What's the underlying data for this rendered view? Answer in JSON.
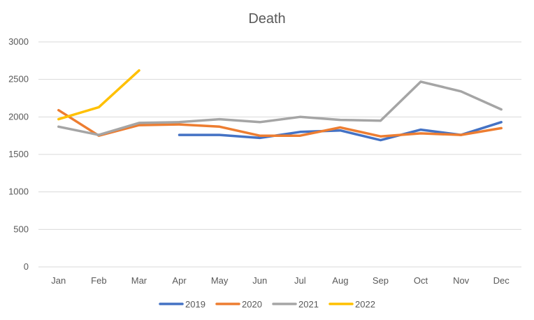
{
  "chart_data": {
    "type": "line",
    "title": "Death",
    "xlabel": "",
    "ylabel": "",
    "categories": [
      "Jan",
      "Feb",
      "Mar",
      "Apr",
      "May",
      "Jun",
      "Jul",
      "Aug",
      "Sep",
      "Oct",
      "Nov",
      "Dec"
    ],
    "ylim": [
      0,
      3000
    ],
    "yticks": [
      0,
      500,
      1000,
      1500,
      2000,
      2500,
      3000
    ],
    "grid": true,
    "legend_position": "bottom",
    "series": [
      {
        "name": "2019",
        "color": "#4472C4",
        "values": [
          null,
          null,
          null,
          1760,
          1760,
          1720,
          1800,
          1820,
          1690,
          1830,
          1760,
          1930
        ]
      },
      {
        "name": "2020",
        "color": "#ED7D31",
        "values": [
          2090,
          1750,
          1890,
          1900,
          1870,
          1750,
          1750,
          1860,
          1740,
          1780,
          1760,
          1850
        ]
      },
      {
        "name": "2021",
        "color": "#A5A5A5",
        "values": [
          1870,
          1760,
          1920,
          1930,
          1970,
          1930,
          2000,
          1960,
          1950,
          2470,
          2340,
          2100
        ]
      },
      {
        "name": "2022",
        "color": "#FFC000",
        "values": [
          1970,
          2130,
          2620,
          null,
          null,
          null,
          null,
          null,
          null,
          null,
          null,
          null
        ]
      }
    ]
  }
}
